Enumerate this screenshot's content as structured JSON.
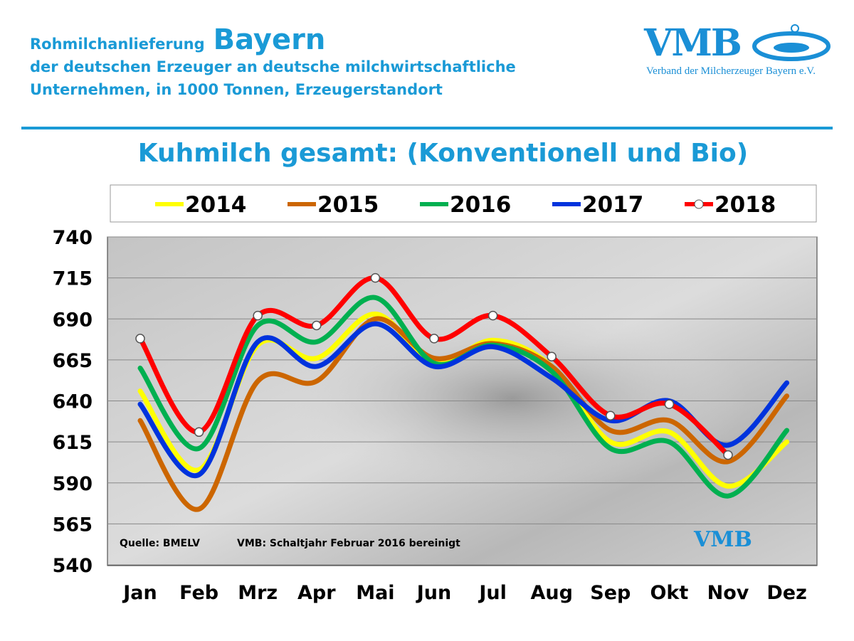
{
  "header": {
    "line1": "Rohmilchanlieferung",
    "region": "Bayern",
    "line2": "der deutschen Erzeuger an deutsche milchwirtschaftliche",
    "line3": "Unternehmen, in 1000 Tonnen, Erzeugerstandort"
  },
  "logo": {
    "name": "VMB",
    "subtitle": "Verband der Milcherzeuger Bayern e.V."
  },
  "chart_data": {
    "type": "line",
    "title": "Kuhmilch gesamt: (Konventionell und Bio)",
    "categories": [
      "Jan",
      "Feb",
      "Mrz",
      "Apr",
      "Mai",
      "Jun",
      "Jul",
      "Aug",
      "Sep",
      "Okt",
      "Nov",
      "Dez"
    ],
    "ylim": [
      540,
      740
    ],
    "yticks": [
      540,
      565,
      590,
      615,
      640,
      665,
      690,
      715,
      740
    ],
    "grid": true,
    "legend": "top",
    "series": [
      {
        "name": "2014",
        "color": "#ffff00",
        "values": [
          646,
          598,
          674,
          666,
          693,
          663,
          677,
          661,
          615,
          621,
          588,
          615
        ]
      },
      {
        "name": "2015",
        "color": "#cc6600",
        "values": [
          628,
          574,
          652,
          652,
          690,
          666,
          675,
          661,
          622,
          628,
          603,
          643
        ]
      },
      {
        "name": "2016",
        "color": "#00b050",
        "values": [
          660,
          611,
          686,
          676,
          703,
          663,
          674,
          658,
          611,
          615,
          582,
          622
        ]
      },
      {
        "name": "2017",
        "color": "#0033dd",
        "values": [
          638,
          595,
          676,
          661,
          687,
          661,
          673,
          654,
          628,
          640,
          613,
          651
        ]
      },
      {
        "name": "2018",
        "color": "#ff0000",
        "markers": true,
        "values": [
          678,
          621,
          692,
          686,
          715,
          678,
          692,
          667,
          631,
          638,
          607,
          null
        ]
      }
    ],
    "annotations": [
      "Quelle: BMELV",
      "VMB: Schaltjahr  Februar  2016  bereinigt"
    ]
  }
}
